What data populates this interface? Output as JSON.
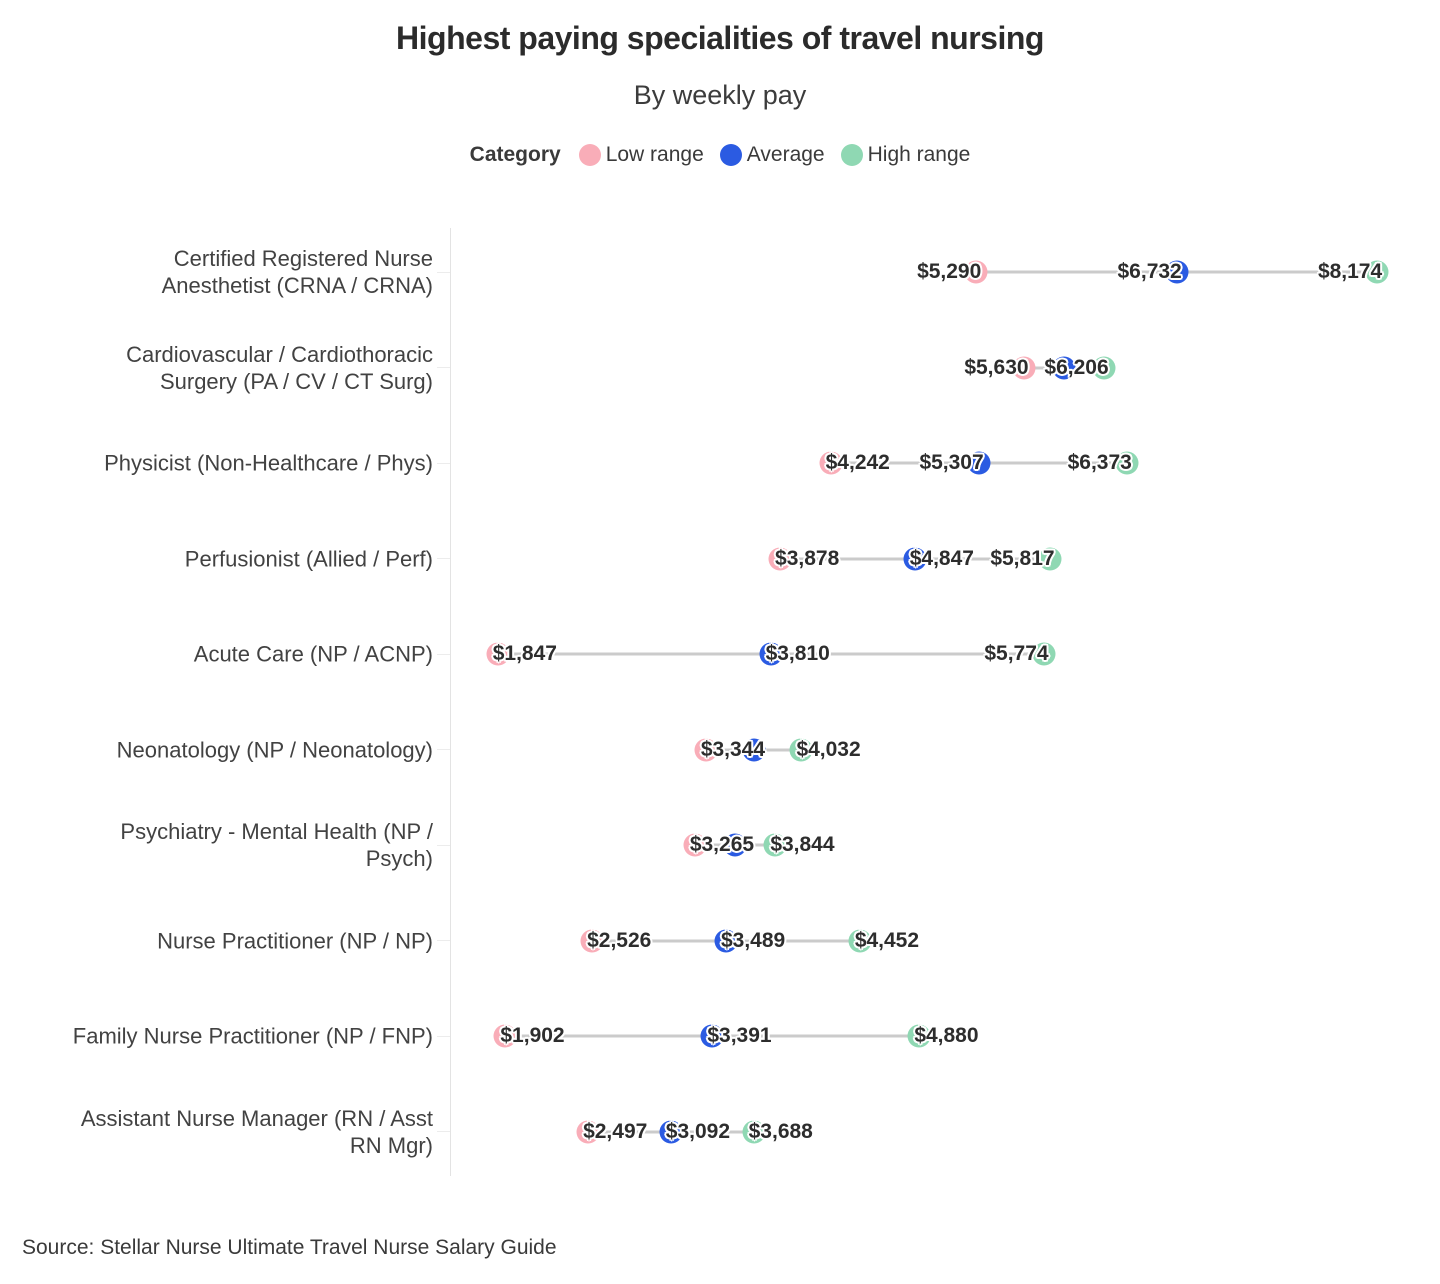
{
  "title": "Highest paying specialities of travel nursing",
  "subtitle": "By weekly pay",
  "legend": {
    "label": "Category",
    "items": [
      {
        "name": "Low range",
        "color": "#f9adb8"
      },
      {
        "name": "Average",
        "color": "#2b5be2"
      },
      {
        "name": "High range",
        "color": "#8fd8b3"
      }
    ]
  },
  "source": "Source: Stellar Nurse Ultimate Travel Nurse Salary Guide",
  "colors": {
    "connector_line": "#cbcbcb",
    "axis_line": "#e3e3e3",
    "value_label_text": "#2d2d2d",
    "category_label_text": "#424242",
    "title_text": "#2b2b2b"
  },
  "chart_data": {
    "type": "scatter",
    "variant": "dumbbell-dot-plot",
    "title": "Highest paying specialities of travel nursing",
    "subtitle": "By weekly pay",
    "xlabel": "",
    "ylabel": "",
    "x_range_estimate": [
      1500,
      8600
    ],
    "grid": false,
    "legend_position": "top-center",
    "legend_title": "Category",
    "categories": [
      "Certified Registered Nurse Anesthetist (CRNA / CRNA)",
      "Cardiovascular / Cardiothoracic Surgery (PA / CV / CT Surg)",
      "Physicist (Non-Healthcare / Phys)",
      "Perfusionist (Allied / Perf)",
      "Acute Care (NP / ACNP)",
      "Neonatology (NP / Neonatology)",
      "Psychiatry - Mental Health (NP / Psych)",
      "Nurse Practitioner (NP / NP)",
      "Family Nurse Practitioner (NP / FNP)",
      "Assistant Nurse Manager (RN / Asst RN Mgr)"
    ],
    "series": [
      {
        "name": "Low range",
        "values": [
          5290,
          5630,
          4242,
          3878,
          1847,
          3344,
          3265,
          2526,
          1902,
          2497
        ]
      },
      {
        "name": "Average",
        "values": [
          6732,
          5918,
          5307,
          4847,
          3810,
          3688,
          3554,
          3489,
          3391,
          3092
        ]
      },
      {
        "name": "High range",
        "values": [
          8174,
          6206,
          6373,
          5817,
          5774,
          4032,
          3844,
          4452,
          4880,
          3688
        ]
      }
    ],
    "rows": [
      {
        "category_display": "Certified Registered Nurse\nAnesthetist (CRNA / CRNA)",
        "points": [
          {
            "series": "Low range",
            "value": 5290,
            "label": "$5,290",
            "label_side": "left",
            "label_visible": true
          },
          {
            "series": "Average",
            "value": 6732,
            "label": "$6,732",
            "label_side": "left",
            "label_visible": true
          },
          {
            "series": "High range",
            "value": 8174,
            "label": "$8,174",
            "label_side": "left",
            "label_visible": true
          }
        ]
      },
      {
        "category_display": "Cardiovascular / Cardiothoracic\nSurgery (PA / CV / CT Surg)",
        "points": [
          {
            "series": "Low range",
            "value": 5630,
            "label": "$5,630",
            "label_side": "left",
            "label_visible": true
          },
          {
            "series": "Average",
            "value": 5918,
            "label": "",
            "label_side": "left",
            "label_visible": false
          },
          {
            "series": "High range",
            "value": 6206,
            "label": "$6,206",
            "label_side": "left",
            "label_visible": true
          }
        ]
      },
      {
        "category_display": "Physicist (Non-Healthcare / Phys)",
        "points": [
          {
            "series": "Low range",
            "value": 4242,
            "label": "$4,242",
            "label_side": "right",
            "label_visible": true
          },
          {
            "series": "Average",
            "value": 5307,
            "label": "$5,307",
            "label_side": "left",
            "label_visible": true
          },
          {
            "series": "High range",
            "value": 6373,
            "label": "$6,373",
            "label_side": "left",
            "label_visible": true
          }
        ]
      },
      {
        "category_display": "Perfusionist (Allied / Perf)",
        "points": [
          {
            "series": "Low range",
            "value": 3878,
            "label": "$3,878",
            "label_side": "right",
            "label_visible": true
          },
          {
            "series": "Average",
            "value": 4847,
            "label": "$4,847",
            "label_side": "right",
            "label_visible": true
          },
          {
            "series": "High range",
            "value": 5817,
            "label": "$5,817",
            "label_side": "left",
            "label_visible": true
          }
        ]
      },
      {
        "category_display": "Acute Care (NP / ACNP)",
        "points": [
          {
            "series": "Low range",
            "value": 1847,
            "label": "$1,847",
            "label_side": "right",
            "label_visible": true
          },
          {
            "series": "Average",
            "value": 3810,
            "label": "$3,810",
            "label_side": "right",
            "label_visible": true
          },
          {
            "series": "High range",
            "value": 5774,
            "label": "$5,774",
            "label_side": "left",
            "label_visible": true
          }
        ]
      },
      {
        "category_display": "Neonatology (NP / Neonatology)",
        "points": [
          {
            "series": "Low range",
            "value": 3344,
            "label": "$3,344",
            "label_side": "right",
            "label_visible": true
          },
          {
            "series": "Average",
            "value": 3688,
            "label": "",
            "label_side": "right",
            "label_visible": false
          },
          {
            "series": "High range",
            "value": 4032,
            "label": "$4,032",
            "label_side": "right",
            "label_visible": true
          }
        ]
      },
      {
        "category_display": "Psychiatry - Mental Health (NP /\nPsych)",
        "points": [
          {
            "series": "Low range",
            "value": 3265,
            "label": "$3,265",
            "label_side": "right",
            "label_visible": true
          },
          {
            "series": "Average",
            "value": 3554,
            "label": "",
            "label_side": "right",
            "label_visible": false
          },
          {
            "series": "High range",
            "value": 3844,
            "label": "$3,844",
            "label_side": "right",
            "label_visible": true
          }
        ]
      },
      {
        "category_display": "Nurse Practitioner (NP / NP)",
        "points": [
          {
            "series": "Low range",
            "value": 2526,
            "label": "$2,526",
            "label_side": "right",
            "label_visible": true
          },
          {
            "series": "Average",
            "value": 3489,
            "label": "$3,489",
            "label_side": "right",
            "label_visible": true
          },
          {
            "series": "High range",
            "value": 4452,
            "label": "$4,452",
            "label_side": "right",
            "label_visible": true
          }
        ]
      },
      {
        "category_display": "Family Nurse Practitioner (NP / FNP)",
        "points": [
          {
            "series": "Low range",
            "value": 1902,
            "label": "$1,902",
            "label_side": "right",
            "label_visible": true
          },
          {
            "series": "Average",
            "value": 3391,
            "label": "$3,391",
            "label_side": "right",
            "label_visible": true
          },
          {
            "series": "High range",
            "value": 4880,
            "label": "$4,880",
            "label_side": "right",
            "label_visible": true
          }
        ]
      },
      {
        "category_display": "Assistant Nurse Manager (RN / Asst\nRN Mgr)",
        "points": [
          {
            "series": "Low range",
            "value": 2497,
            "label": "$2,497",
            "label_side": "right",
            "label_visible": true
          },
          {
            "series": "Average",
            "value": 3092,
            "label": "$3,092",
            "label_side": "right",
            "label_visible": true
          },
          {
            "series": "High range",
            "value": 3688,
            "label": "$3,688",
            "label_side": "right",
            "label_visible": true
          }
        ]
      }
    ]
  }
}
